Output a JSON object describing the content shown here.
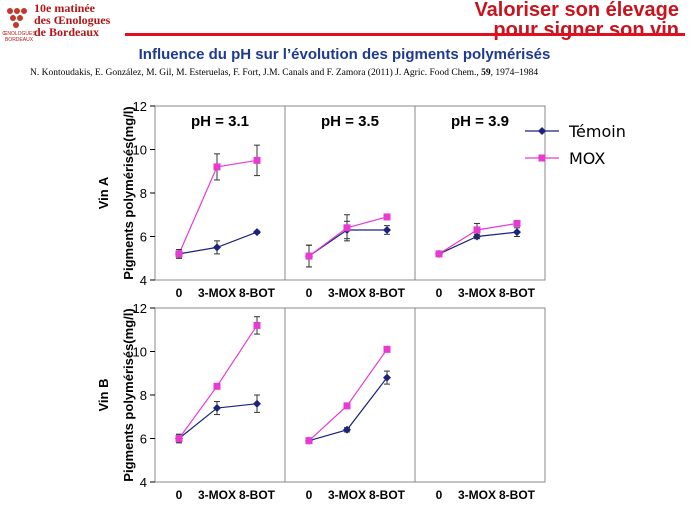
{
  "header": {
    "logo_lines": [
      "10e matinée",
      "des Œnologues",
      "de Bordeaux"
    ],
    "logo_assoc": "ŒNOLOGUES BORDEAUX",
    "title_line1": "Valoriser son élevage",
    "title_line2": "pour signer son vin",
    "accent_color": "#c8141e"
  },
  "subtitle": "Influence du pH sur l’évolution des pigments polymérisés",
  "citation": {
    "before": "N. Kontoudakis, E. González, M. Gil, M. Esteruelas, F. Fort, J.M. Canals and F. Zamora (2011) J. Agric. Food Chem., ",
    "volume": "59",
    "after": ", 1974–1984"
  },
  "chart_data": {
    "type": "line",
    "ylabel": "Pigments polymérisés(mg/l)",
    "categories": [
      "0",
      "3-MOX",
      "8-BOT"
    ],
    "ylim": [
      4,
      12
    ],
    "yticks": [
      4,
      6,
      8,
      10,
      12
    ],
    "legend": {
      "placement": "top-right",
      "entries": [
        {
          "name": "Témoin",
          "color": "#1a237e",
          "marker": "diamond"
        },
        {
          "name": "MOX",
          "color": "#e83ad2",
          "marker": "square"
        }
      ]
    },
    "columns": [
      "pH = 3.1",
      "pH = 3.5",
      "pH = 3.9"
    ],
    "rows": [
      "Vin A",
      "Vin B"
    ],
    "panels": [
      {
        "row": "Vin A",
        "column": "pH = 3.1",
        "series": [
          {
            "name": "Témoin",
            "values": [
              5.2,
              5.5,
              6.2
            ],
            "errors": [
              0.2,
              0.3,
              0.05
            ]
          },
          {
            "name": "MOX",
            "values": [
              5.2,
              9.2,
              9.5
            ],
            "errors": [
              0.2,
              0.6,
              0.7
            ]
          }
        ]
      },
      {
        "row": "Vin A",
        "column": "pH = 3.5",
        "series": [
          {
            "name": "Témoin",
            "values": [
              5.1,
              6.3,
              6.3
            ],
            "errors": [
              0.5,
              0.4,
              0.2
            ]
          },
          {
            "name": "MOX",
            "values": [
              5.1,
              6.4,
              6.9
            ],
            "errors": [
              0.5,
              0.6,
              0.1
            ]
          }
        ]
      },
      {
        "row": "Vin A",
        "column": "pH = 3.9",
        "series": [
          {
            "name": "Témoin",
            "values": [
              5.2,
              6.0,
              6.2
            ],
            "errors": [
              0.1,
              0.1,
              0.2
            ]
          },
          {
            "name": "MOX",
            "values": [
              5.2,
              6.3,
              6.6
            ],
            "errors": [
              0.1,
              0.3,
              0.1
            ]
          }
        ]
      },
      {
        "row": "Vin B",
        "column": "pH = 3.1",
        "series": [
          {
            "name": "Témoin",
            "values": [
              6.0,
              7.4,
              7.6
            ],
            "errors": [
              0.2,
              0.3,
              0.4
            ]
          },
          {
            "name": "MOX",
            "values": [
              6.0,
              8.4,
              11.2
            ],
            "errors": [
              0.15,
              0.1,
              0.4
            ]
          }
        ]
      },
      {
        "row": "Vin B",
        "column": "pH = 3.5",
        "series": [
          {
            "name": "Témoin",
            "values": [
              5.9,
              6.4,
              8.8
            ],
            "errors": [
              0.05,
              0.1,
              0.3
            ]
          },
          {
            "name": "MOX",
            "values": [
              5.9,
              7.5,
              10.1
            ],
            "errors": [
              0.05,
              0.05,
              0.05
            ]
          }
        ]
      },
      {
        "row": "Vin B",
        "column": "pH = 3.9",
        "series": []
      }
    ],
    "grid": false
  }
}
